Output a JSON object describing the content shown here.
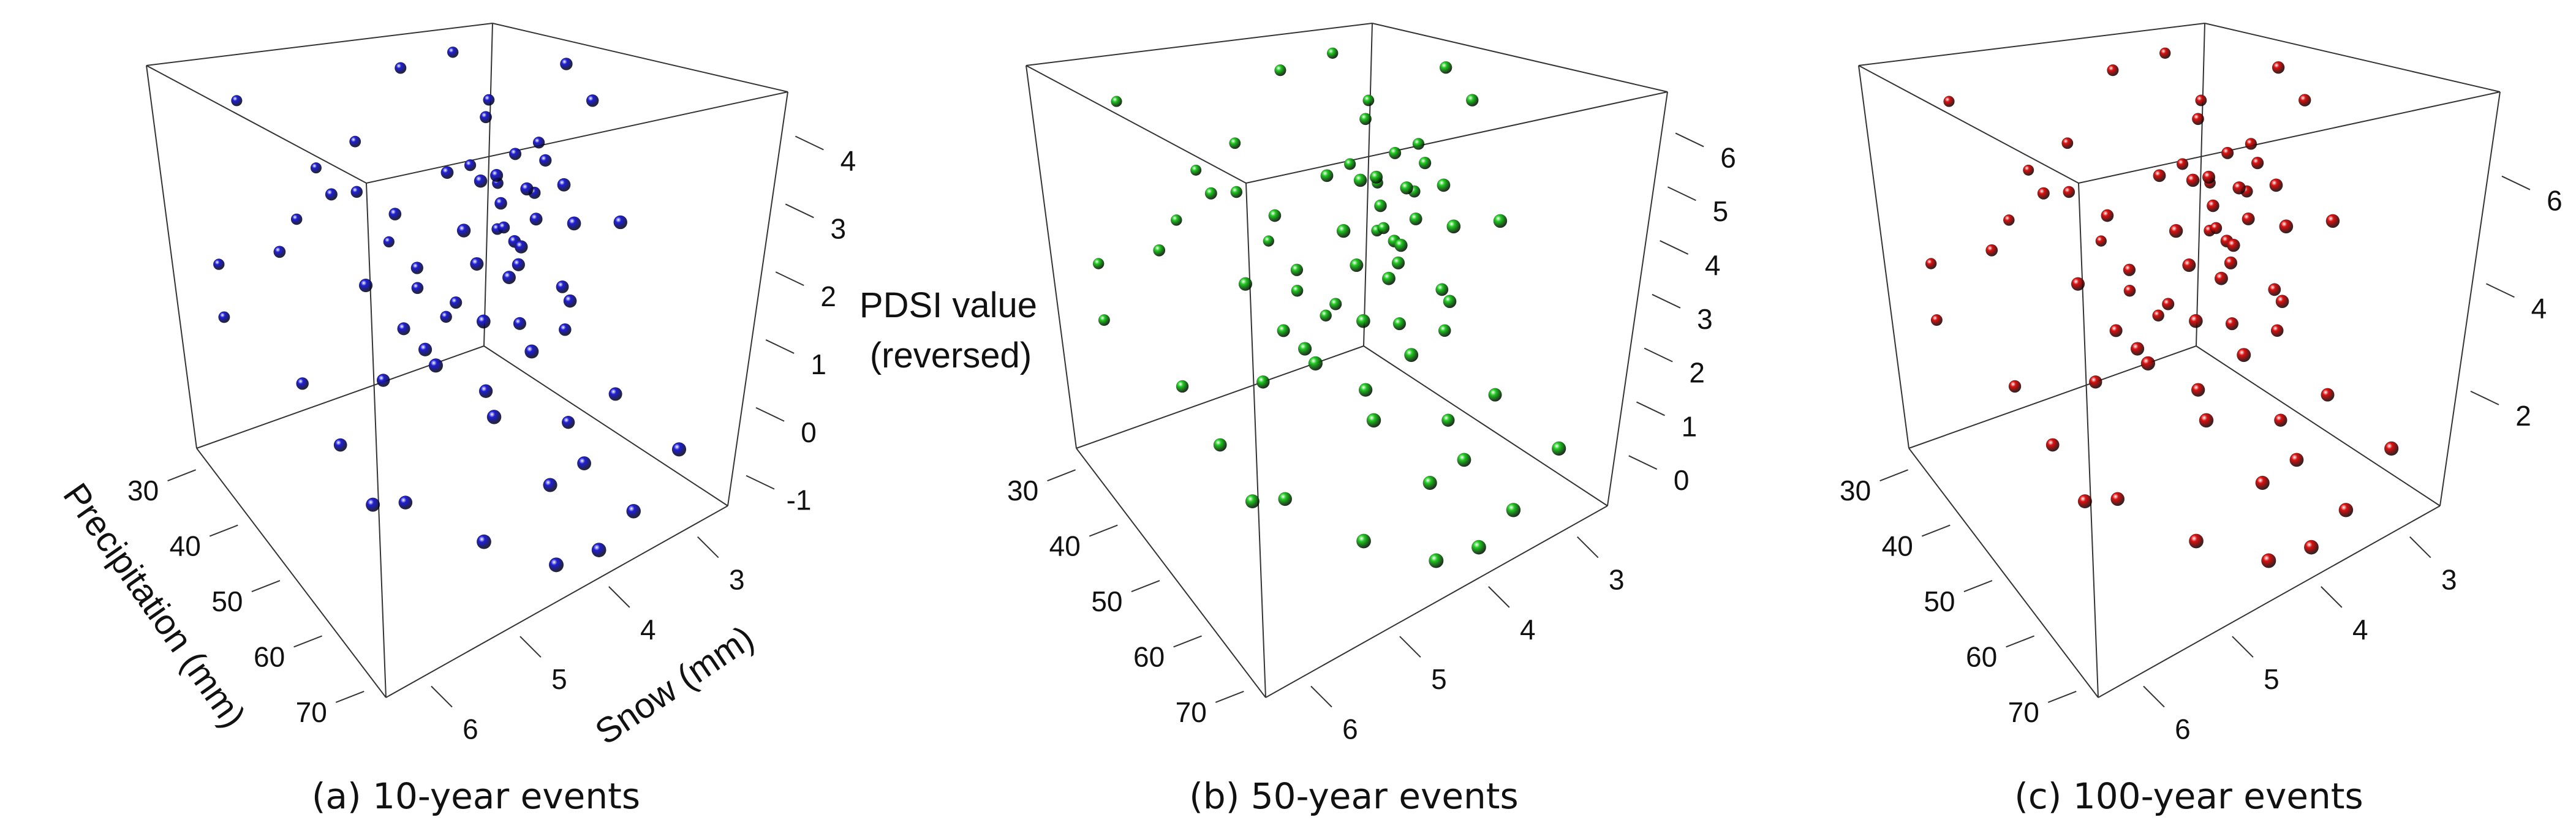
{
  "chart_data": {
    "type": "scatter3d",
    "xlabel": "Precipitation (mm)",
    "ylabel": "Snow (mm)",
    "zlabel_line1": "PDSI value",
    "zlabel_line2": "(reversed)",
    "xlim": [
      27,
      72
    ],
    "ylim": [
      6.4,
      2.55
    ],
    "xticks": [
      30,
      40,
      50,
      60,
      70
    ],
    "yticks": [
      6,
      5,
      4,
      3
    ],
    "grid": false,
    "precipitation": [
      30,
      28,
      35,
      45,
      40,
      33,
      48,
      50,
      52,
      55,
      42,
      44,
      38,
      60,
      36,
      57,
      46,
      49,
      53,
      41,
      56,
      62,
      47,
      51,
      44,
      39,
      58,
      64,
      54,
      48,
      43,
      50,
      59,
      35,
      32,
      66,
      68,
      40,
      30,
      34,
      45,
      55,
      61,
      70,
      65,
      72,
      63,
      52,
      57,
      46,
      38,
      68,
      70,
      66,
      27,
      31,
      29,
      37,
      60,
      62,
      54,
      47,
      42,
      58,
      33,
      50,
      45,
      39,
      53,
      64
    ],
    "snow": [
      3.2,
      5.5,
      4.1,
      3.0,
      3.5,
      3.0,
      4.4,
      4.0,
      3.8,
      3.6,
      3.3,
      3.1,
      4.8,
      4.9,
      3.4,
      4.6,
      3.7,
      3.5,
      3.9,
      3.0,
      4.2,
      4.8,
      3.6,
      3.8,
      4.5,
      3.2,
      5.2,
      4.4,
      3.4,
      3.1,
      4.0,
      3.7,
      4.6,
      3.0,
      2.8,
      5.5,
      5.0,
      5.8,
      6.0,
      6.2,
      5.9,
      6.0,
      5.6,
      5.2,
      4.2,
      4.5,
      3.7,
      3.2,
      3.0,
      2.9,
      3.8,
      3.4,
      3.9,
      2.8,
      4.6,
      5.1,
      3.9,
      2.7,
      3.3,
      3.9,
      4.4,
      4.9,
      5.3,
      5.8,
      4.5,
      5.0,
      2.7,
      4.2,
      5.4,
      6.1
    ],
    "panels": [
      {
        "caption": "(a) 10-year events",
        "color": "#1f1fd6",
        "zlim": [
          -1.5,
          4.6
        ],
        "zticks": [
          -1,
          0,
          1,
          2,
          3,
          4
        ],
        "pdsi": [
          4.3,
          3.9,
          4.4,
          4.5,
          3.6,
          3.5,
          3.3,
          3.2,
          3.0,
          3.1,
          3.0,
          2.9,
          2.7,
          3.1,
          2.6,
          2.4,
          2.5,
          2.3,
          2.2,
          2.2,
          2.0,
          1.9,
          1.9,
          1.8,
          1.7,
          1.6,
          1.5,
          1.4,
          1.2,
          1.0,
          0.9,
          0.8,
          0.7,
          1.3,
          1.9,
          1.8,
          1.0,
          2.2,
          1.5,
          1.0,
          0.6,
          0.4,
          -0.2,
          -0.4,
          -0.5,
          -1.0,
          -0.6,
          -0.9,
          -0.3,
          0.1,
          0.3,
          -1.2,
          -1.3,
          -0.8,
          2.5,
          2.0,
          1.1,
          2.8,
          2.6,
          2.9,
          3.4,
          2.8,
          3.0,
          2.6,
          3.2,
          1.3,
          3.8,
          1.0,
          0.9,
          0.2
        ]
      },
      {
        "caption": "(b) 50-year events",
        "color": "#22cc22",
        "zlim": [
          -1.0,
          6.7
        ],
        "zticks": [
          0,
          1,
          2,
          3,
          4,
          5,
          6
        ],
        "pdsi": [
          6.3,
          5.8,
          6.4,
          6.5,
          5.4,
          5.3,
          5.0,
          4.9,
          4.7,
          4.8,
          4.7,
          4.5,
          4.3,
          4.8,
          4.2,
          3.9,
          4.0,
          3.8,
          3.7,
          3.7,
          3.4,
          3.3,
          3.3,
          3.2,
          3.0,
          2.9,
          2.8,
          2.6,
          2.4,
          2.1,
          2.0,
          1.9,
          1.8,
          2.5,
          3.3,
          3.2,
          2.1,
          3.7,
          2.8,
          2.1,
          1.6,
          1.4,
          0.7,
          0.4,
          0.3,
          -0.3,
          0.2,
          -0.2,
          0.5,
          1.0,
          1.3,
          -0.6,
          -0.7,
          -0.1,
          4.0,
          3.4,
          2.3,
          4.4,
          4.2,
          4.5,
          5.2,
          4.4,
          4.7,
          4.2,
          4.9,
          2.5,
          5.7,
          2.1,
          2.0,
          1.2
        ]
      },
      {
        "caption": "(c) 100-year events",
        "color": "#dd1111",
        "zlim": [
          -0.2,
          7.5
        ],
        "zticks": [
          2,
          4,
          6
        ],
        "pdsi": [
          7.1,
          6.6,
          7.2,
          7.3,
          6.2,
          6.1,
          5.8,
          5.7,
          5.5,
          5.6,
          5.5,
          5.3,
          5.1,
          5.6,
          5.0,
          4.7,
          4.8,
          4.6,
          4.5,
          4.5,
          4.2,
          4.1,
          4.1,
          4.0,
          3.8,
          3.7,
          3.6,
          3.4,
          3.2,
          2.9,
          2.8,
          2.7,
          2.6,
          3.3,
          4.1,
          4.0,
          2.9,
          4.5,
          3.6,
          2.9,
          2.4,
          2.2,
          1.5,
          1.2,
          1.1,
          0.5,
          1.0,
          0.6,
          1.3,
          1.8,
          2.1,
          0.2,
          0.1,
          0.7,
          4.8,
          4.2,
          3.1,
          5.2,
          5.0,
          5.3,
          6.0,
          5.2,
          5.5,
          5.0,
          5.7,
          3.3,
          6.5,
          2.9,
          2.8,
          2.0
        ]
      }
    ]
  }
}
